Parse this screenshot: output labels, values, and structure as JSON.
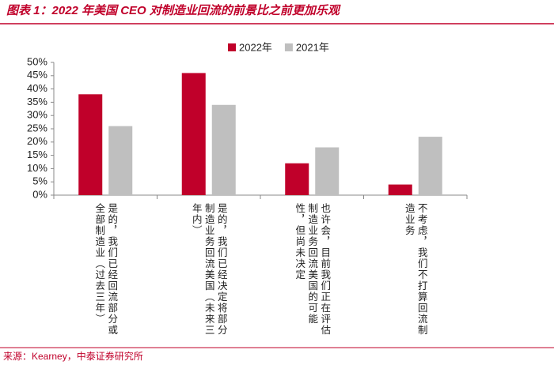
{
  "chart_data": {
    "type": "bar",
    "title": "图表 1：2022 年美国 CEO 对制造业回流的前景比之前更加乐观",
    "source": "来源：Kearney，中泰证券研究所",
    "categories": [
      "是的，我们已经回流部分或全部制造业（过去三年）",
      "是的，我们已经决定将部分制造业务回流美国（未来三年内）",
      "也许会，目前我们正在评估制造业务回流美国的可能性，但尚未决定",
      "不考虑，我们不打算回流制造业务"
    ],
    "series": [
      {
        "name": "2022年",
        "color": "#c0002a",
        "values": [
          38,
          46,
          12,
          4
        ]
      },
      {
        "name": "2021年",
        "color": "#bfbfbf",
        "values": [
          26,
          34,
          18,
          22
        ]
      }
    ],
    "ylim": [
      0,
      50
    ],
    "yticks": [
      {
        "value": 0,
        "label": "0%"
      },
      {
        "value": 5,
        "label": "5%"
      },
      {
        "value": 10,
        "label": "10%"
      },
      {
        "value": 15,
        "label": "15%"
      },
      {
        "value": 20,
        "label": "20%"
      },
      {
        "value": 25,
        "label": "25%"
      },
      {
        "value": 30,
        "label": "30%"
      },
      {
        "value": 35,
        "label": "35%"
      },
      {
        "value": 40,
        "label": "40%"
      },
      {
        "value": 45,
        "label": "45%"
      },
      {
        "value": 50,
        "label": "50%"
      }
    ],
    "legend": "top"
  }
}
